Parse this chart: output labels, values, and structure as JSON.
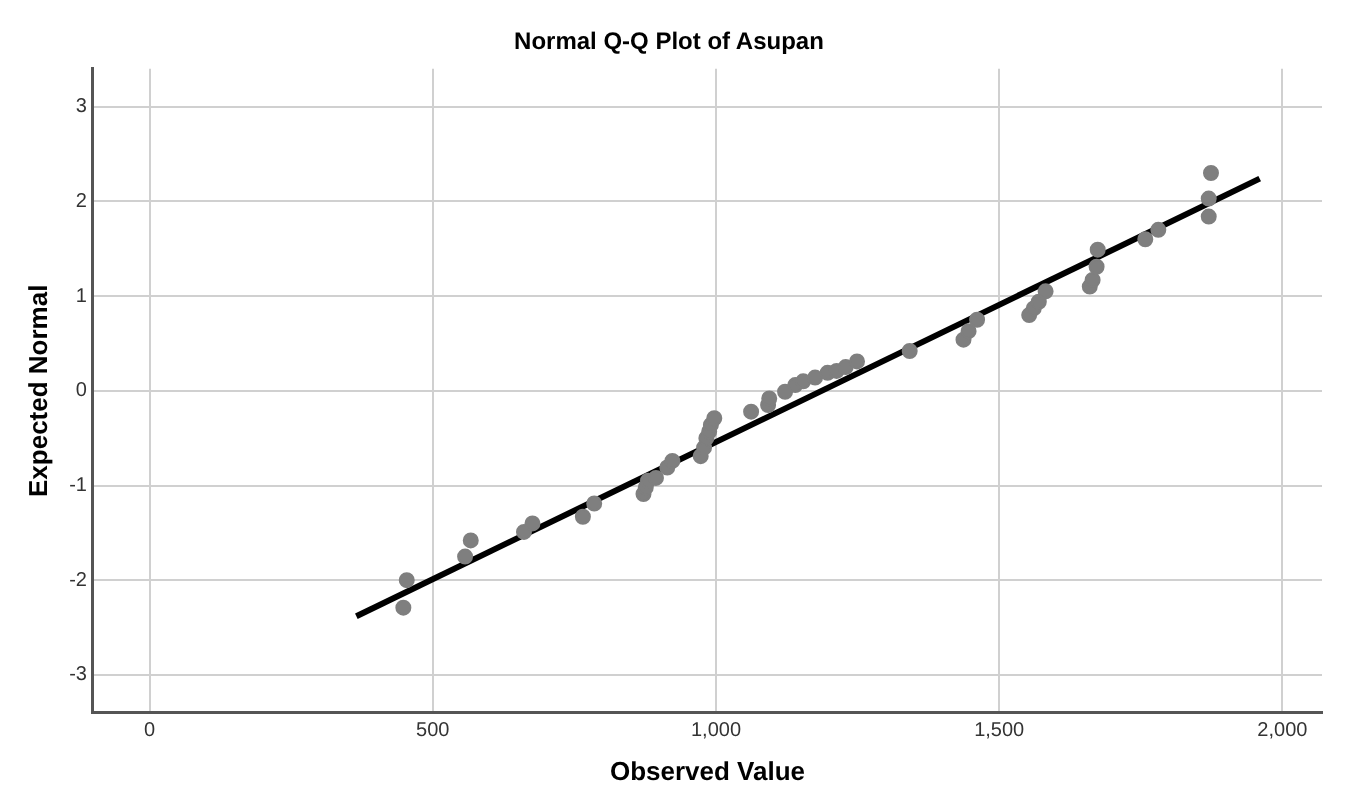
{
  "chart_data": {
    "type": "scatter",
    "title": "Normal Q-Q Plot of Asupan",
    "xlabel": "Observed Value",
    "ylabel": "Expected Normal",
    "xlim": [
      -100,
      2070
    ],
    "ylim": [
      -3.4,
      3.4
    ],
    "xticks": [
      0,
      500,
      {
        "value": 1000,
        "label": "1,000"
      },
      {
        "value": 1500,
        "label": "1,500"
      },
      {
        "value": 2000,
        "label": "2,000"
      }
    ],
    "yticks": [
      -3,
      -2,
      -1,
      0,
      1,
      2,
      3
    ],
    "grid": true,
    "legend": false,
    "marker": "circle",
    "series": [
      {
        "type": "scatter",
        "color": "#7f7f7f",
        "x": [
          448,
          454,
          557,
          567,
          661,
          676,
          765,
          785,
          872,
          876,
          880,
          894,
          914,
          923,
          973,
          979,
          983,
          988,
          991,
          997,
          1062,
          1092,
          1094,
          1122,
          1140,
          1154,
          1175,
          1197,
          1213,
          1229,
          1249,
          1342,
          1437,
          1446,
          1461,
          1553,
          1561,
          1570,
          1582,
          1660,
          1665,
          1672,
          1674,
          1758,
          1781,
          1870,
          1870,
          1874
        ],
        "values": [
          -2.29,
          -2.0,
          -1.75,
          -1.58,
          -1.49,
          -1.4,
          -1.33,
          -1.19,
          -1.09,
          -1.02,
          -0.95,
          -0.92,
          -0.81,
          -0.74,
          -0.69,
          -0.6,
          -0.5,
          -0.43,
          -0.36,
          -0.29,
          -0.22,
          -0.15,
          -0.08,
          -0.01,
          0.06,
          0.1,
          0.14,
          0.19,
          0.21,
          0.25,
          0.31,
          0.42,
          0.54,
          0.63,
          0.75,
          0.8,
          0.87,
          0.94,
          1.05,
          1.1,
          1.17,
          1.31,
          1.49,
          1.6,
          1.7,
          1.84,
          2.03,
          2.3
        ]
      },
      {
        "type": "line",
        "color": "#000000",
        "marker": "none",
        "x": [
          365,
          1960
        ],
        "values": [
          -2.38,
          2.24
        ]
      }
    ]
  }
}
